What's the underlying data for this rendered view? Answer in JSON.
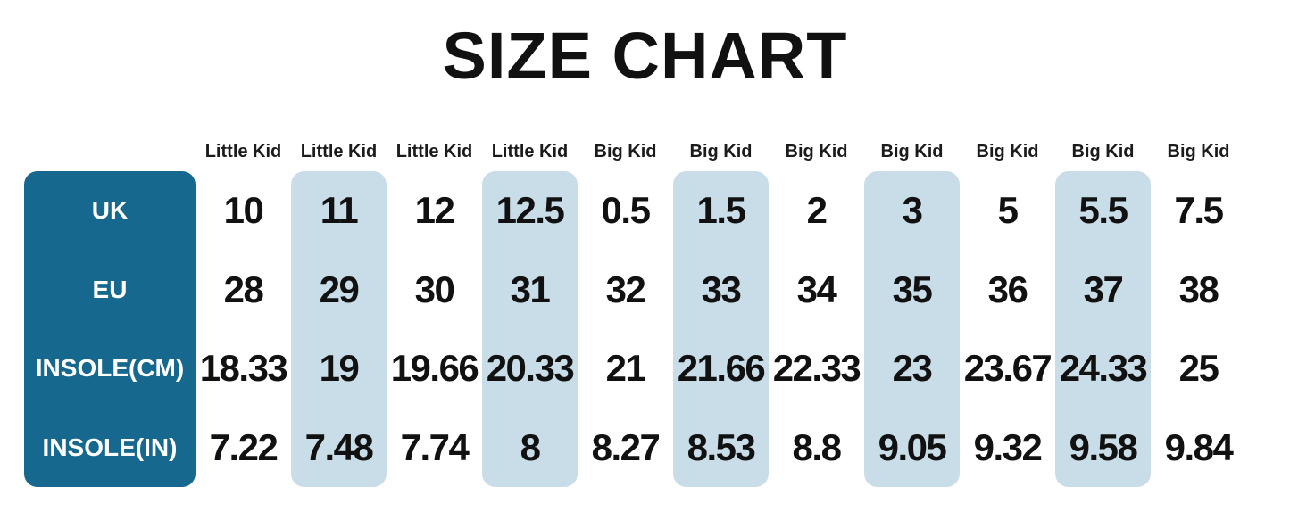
{
  "title": "SIZE CHART",
  "colors": {
    "label_box": "#16688f",
    "highlight_column": "#c8dde7",
    "text": "#111111",
    "label_text": "#ffffff",
    "background": "#ffffff"
  },
  "chart_data": {
    "type": "table",
    "title": "SIZE CHART",
    "column_groups": [
      "Little Kid",
      "Little Kid",
      "Little Kid",
      "Little Kid",
      "Big Kid",
      "Big Kid",
      "Big Kid",
      "Big Kid",
      "Big Kid",
      "Big Kid",
      "Big Kid"
    ],
    "rows": [
      {
        "label": "UK",
        "values": [
          "10",
          "11",
          "12",
          "12.5",
          "0.5",
          "1.5",
          "2",
          "3",
          "5",
          "5.5",
          "7.5"
        ]
      },
      {
        "label": "EU",
        "values": [
          "28",
          "29",
          "30",
          "31",
          "32",
          "33",
          "34",
          "35",
          "36",
          "37",
          "38"
        ]
      },
      {
        "label": "INSOLE(CM)",
        "values": [
          "18.33",
          "19",
          "19.66",
          "20.33",
          "21",
          "21.66",
          "22.33",
          "23",
          "23.67",
          "24.33",
          "25"
        ]
      },
      {
        "label": "INSOLE(IN)",
        "values": [
          "7.22",
          "7.48",
          "7.74",
          "8",
          "8.27",
          "8.53",
          "8.8",
          "9.05",
          "9.32",
          "9.58",
          "9.84"
        ]
      }
    ],
    "highlighted_columns": [
      1,
      3,
      5,
      7,
      9
    ],
    "layout_hints": {
      "grid": false,
      "legend": "none",
      "row_header_style": "teal rounded box",
      "column_highlight_style": "light blue rounded stripe"
    }
  }
}
